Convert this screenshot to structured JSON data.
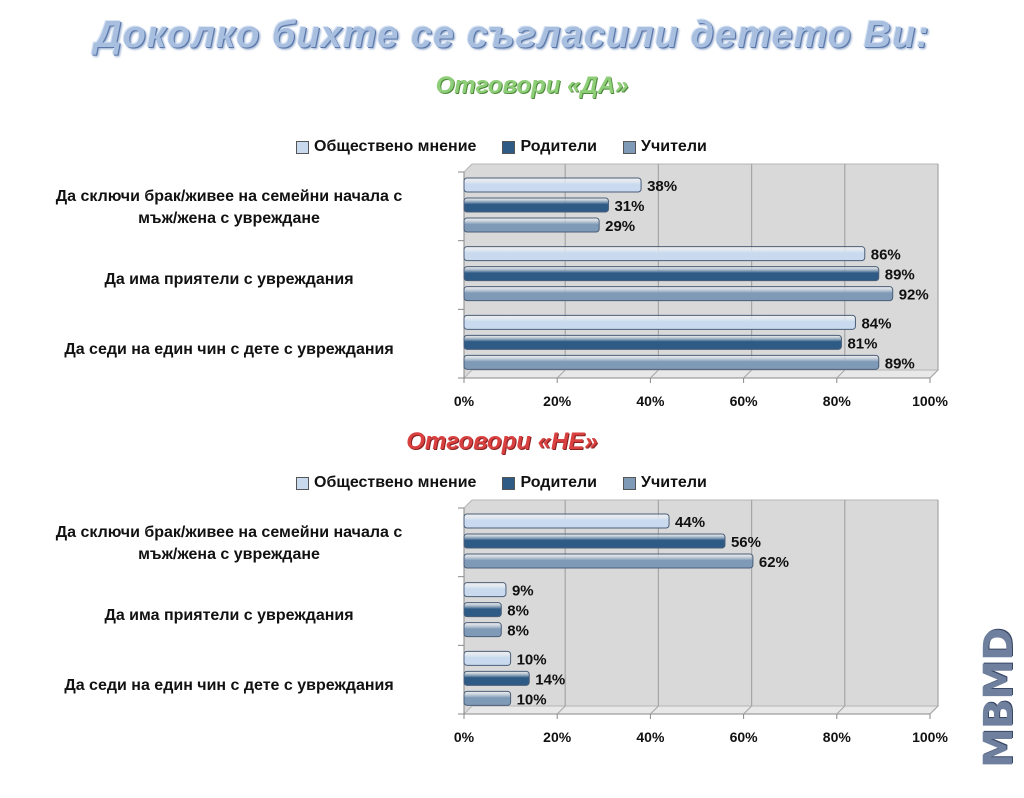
{
  "header": {
    "title": "Доколко бихте се съгласили детето Ви:",
    "subtitle_yes": "Отговори «ДА»",
    "subtitle_no": "Отговори «НЕ»"
  },
  "watermark": "MBMD",
  "colors": {
    "public_opinion": "#c9daee",
    "parents": "#2e5a86",
    "teachers": "#7f9ab7",
    "title": "#a9bfe0",
    "yes": "#8fce78",
    "no": "#d94040"
  },
  "chart_data": [
    {
      "type": "bar",
      "orientation": "horizontal",
      "title": "Отговори «ДА»",
      "categories": [
        "Да сключи брак/живее на семейни начала с мъж/жена с увреждане",
        "Да има приятели с увреждания",
        "Да седи на един чин с дете с увреждания"
      ],
      "category_lines": [
        [
          "Да сключи брак/живее на семейни начала с",
          "мъж/жена с увреждане"
        ],
        [
          "Да има приятели с увреждания"
        ],
        [
          "Да седи на един чин с дете с увреждания"
        ]
      ],
      "series": [
        {
          "name": "Обществено мнение",
          "values": [
            38,
            86,
            84
          ]
        },
        {
          "name": "Родители",
          "values": [
            31,
            89,
            81
          ]
        },
        {
          "name": "Учители",
          "values": [
            29,
            92,
            89
          ]
        }
      ],
      "xlim": [
        0,
        100
      ],
      "x_ticks": [
        "0%",
        "20%",
        "40%",
        "60%",
        "80%",
        "100%"
      ],
      "value_suffix": "%",
      "legend_position": "top",
      "grid": true
    },
    {
      "type": "bar",
      "orientation": "horizontal",
      "title": "Отговори «НЕ»",
      "categories": [
        "Да сключи брак/живее на семейни начала с мъж/жена с увреждане",
        "Да има приятели с увреждания",
        "Да седи на един чин с дете с увреждания"
      ],
      "category_lines": [
        [
          "Да сключи брак/живее на семейни начала с",
          "мъж/жена с увреждане"
        ],
        [
          "Да има приятели с увреждания"
        ],
        [
          "Да седи на един чин с дете с увреждания"
        ]
      ],
      "series": [
        {
          "name": "Обществено мнение",
          "values": [
            44,
            9,
            10
          ]
        },
        {
          "name": "Родители",
          "values": [
            56,
            8,
            14
          ]
        },
        {
          "name": "Учители",
          "values": [
            62,
            8,
            10
          ]
        }
      ],
      "xlim": [
        0,
        100
      ],
      "x_ticks": [
        "0%",
        "20%",
        "40%",
        "60%",
        "80%",
        "100%"
      ],
      "value_suffix": "%",
      "legend_position": "top",
      "grid": true
    }
  ]
}
